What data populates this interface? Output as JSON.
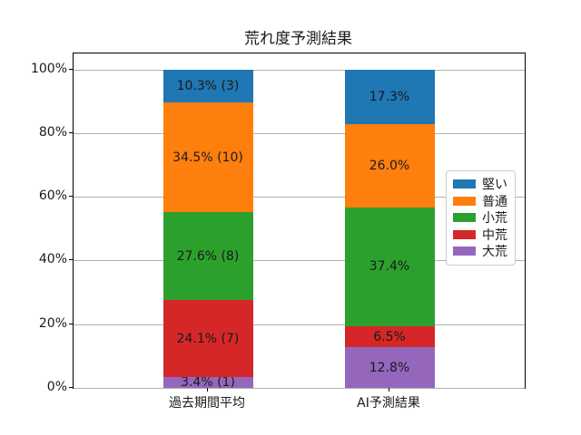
{
  "chart_data": {
    "type": "bar",
    "variant": "stacked-percentage",
    "title": "荒れ度予測結果",
    "categories": [
      "過去期間平均",
      "AI予測結果"
    ],
    "series": [
      {
        "name": "堅い",
        "color": "#1f77b4",
        "values": [
          10.3,
          17.3
        ],
        "labels": [
          "10.3% (3)",
          "17.3%"
        ]
      },
      {
        "name": "普通",
        "color": "#ff7f0e",
        "values": [
          34.5,
          26.0
        ],
        "labels": [
          "34.5% (10)",
          "26.0%"
        ]
      },
      {
        "name": "小荒",
        "color": "#2ca02c",
        "values": [
          27.6,
          37.4
        ],
        "labels": [
          "27.6% (8)",
          "37.4%"
        ]
      },
      {
        "name": "中荒",
        "color": "#d62728",
        "values": [
          24.1,
          6.5
        ],
        "labels": [
          "24.1% (7)",
          "6.5%"
        ]
      },
      {
        "name": "大荒",
        "color": "#9467bd",
        "values": [
          3.4,
          12.8
        ],
        "labels": [
          "3.4% (1)",
          "12.8%"
        ]
      }
    ],
    "stack_order_bottom_to_top": [
      "大荒",
      "中荒",
      "小荒",
      "普通",
      "堅い"
    ],
    "xlabel": "",
    "ylabel": "",
    "y_ticks": {
      "values": [
        0,
        20,
        40,
        60,
        80,
        100
      ],
      "labels": [
        "0%",
        "20%",
        "40%",
        "60%",
        "80%",
        "100%"
      ]
    },
    "ylim": [
      0,
      105
    ],
    "grid": true,
    "grid_color": "#b0b0b0",
    "frame_color": "#000000",
    "text_color": "#1a1a1a",
    "legend_position": "center-right",
    "legend_entries": [
      "堅い",
      "普通",
      "小荒",
      "中荒",
      "大荒"
    ]
  }
}
